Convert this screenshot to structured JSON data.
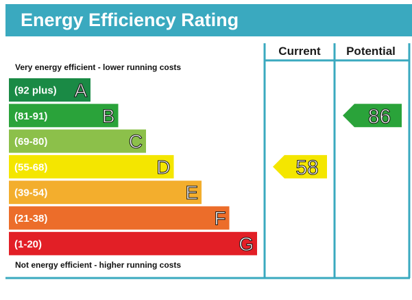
{
  "title": "Energy Efficiency Rating",
  "columns": {
    "current": "Current",
    "potential": "Potential"
  },
  "captions": {
    "top": "Very energy efficient - lower running costs",
    "bottom": "Not energy efficient - higher running costs"
  },
  "chart_data": {
    "type": "bar",
    "title": "Energy Efficiency Rating",
    "bands": [
      {
        "range": "(92 plus)",
        "letter": "A",
        "color": "#1a8a45"
      },
      {
        "range": "(81-91)",
        "letter": "B",
        "color": "#2aa33a"
      },
      {
        "range": "(69-80)",
        "letter": "C",
        "color": "#8cc04a"
      },
      {
        "range": "(55-68)",
        "letter": "D",
        "color": "#f4e600"
      },
      {
        "range": "(39-54)",
        "letter": "E",
        "color": "#f3ae2d"
      },
      {
        "range": "(21-38)",
        "letter": "F",
        "color": "#ec6d2a"
      },
      {
        "range": "(1-20)",
        "letter": "G",
        "color": "#e21f26"
      }
    ],
    "current": {
      "value": 58,
      "band": "D",
      "color": "#f4e600"
    },
    "potential": {
      "value": 86,
      "band": "B",
      "color": "#2aa33a"
    }
  }
}
